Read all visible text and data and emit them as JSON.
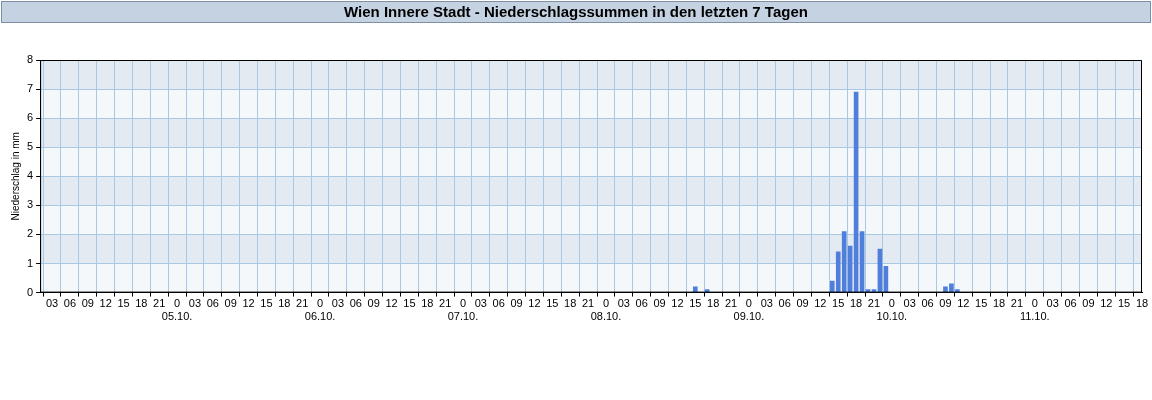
{
  "chart_data": {
    "type": "bar",
    "title": "Wien Innere Stadt - Niederschlagssummen in den letzten 7 Tagen",
    "ylabel": "Niederschlag in mm",
    "x": [
      "--10-08T15:00",
      "--10-08T17:00",
      "--10-09T14:00",
      "--10-09T15:00",
      "--10-09T16:00",
      "--10-09T17:00",
      "--10-09T18:00",
      "--10-09T19:00",
      "--10-09T20:00",
      "--10-09T21:00",
      "--10-09T22:00",
      "--10-09T23:00",
      "--10-10T09:00",
      "--10-10T10:00",
      "--10-10T11:00"
    ],
    "values": [
      0.2,
      0.1,
      0.4,
      1.4,
      2.1,
      1.6,
      6.9,
      2.1,
      0.1,
      0.1,
      1.5,
      0.9,
      0.2,
      0.3,
      0.1
    ],
    "color": "#4f7fdb",
    "xlim": [
      "--10-04T01:00",
      "--10-11T18:00"
    ],
    "xticks": [
      {
        "value": "--10-04T03:00",
        "label": "03"
      },
      {
        "value": "--10-04T06:00",
        "label": "06"
      },
      {
        "value": "--10-04T09:00",
        "label": "09"
      },
      {
        "value": "--10-04T12:00",
        "label": "12"
      },
      {
        "value": "--10-04T15:00",
        "label": "15"
      },
      {
        "value": "--10-04T18:00",
        "label": "18"
      },
      {
        "value": "--10-04T21:00",
        "label": "21"
      },
      {
        "value": "--10-05T00:00",
        "label": "0\n05.10."
      },
      {
        "value": "--10-05T03:00",
        "label": "03"
      },
      {
        "value": "--10-05T06:00",
        "label": "06"
      },
      {
        "value": "--10-05T09:00",
        "label": "09"
      },
      {
        "value": "--10-05T12:00",
        "label": "12"
      },
      {
        "value": "--10-05T15:00",
        "label": "15"
      },
      {
        "value": "--10-05T18:00",
        "label": "18"
      },
      {
        "value": "--10-05T21:00",
        "label": "21"
      },
      {
        "value": "--10-06T00:00",
        "label": "0\n06.10."
      },
      {
        "value": "--10-06T03:00",
        "label": "03"
      },
      {
        "value": "--10-06T06:00",
        "label": "06"
      },
      {
        "value": "--10-06T09:00",
        "label": "09"
      },
      {
        "value": "--10-06T12:00",
        "label": "12"
      },
      {
        "value": "--10-06T15:00",
        "label": "15"
      },
      {
        "value": "--10-06T18:00",
        "label": "18"
      },
      {
        "value": "--10-06T21:00",
        "label": "21"
      },
      {
        "value": "--10-07T00:00",
        "label": "0\n07.10."
      },
      {
        "value": "--10-07T03:00",
        "label": "03"
      },
      {
        "value": "--10-07T06:00",
        "label": "06"
      },
      {
        "value": "--10-07T09:00",
        "label": "09"
      },
      {
        "value": "--10-07T12:00",
        "label": "12"
      },
      {
        "value": "--10-07T15:00",
        "label": "15"
      },
      {
        "value": "--10-07T18:00",
        "label": "18"
      },
      {
        "value": "--10-07T21:00",
        "label": "21"
      },
      {
        "value": "--10-08T00:00",
        "label": "0\n08.10."
      },
      {
        "value": "--10-08T03:00",
        "label": "03"
      },
      {
        "value": "--10-08T06:00",
        "label": "06"
      },
      {
        "value": "--10-08T09:00",
        "label": "09"
      },
      {
        "value": "--10-08T12:00",
        "label": "12"
      },
      {
        "value": "--10-08T15:00",
        "label": "15"
      },
      {
        "value": "--10-08T18:00",
        "label": "18"
      },
      {
        "value": "--10-08T21:00",
        "label": "21"
      },
      {
        "value": "--10-09T00:00",
        "label": "0\n09.10."
      },
      {
        "value": "--10-09T03:00",
        "label": "03"
      },
      {
        "value": "--10-09T06:00",
        "label": "06"
      },
      {
        "value": "--10-09T09:00",
        "label": "09"
      },
      {
        "value": "--10-09T12:00",
        "label": "12"
      },
      {
        "value": "--10-09T15:00",
        "label": "15"
      },
      {
        "value": "--10-09T18:00",
        "label": "18"
      },
      {
        "value": "--10-09T21:00",
        "label": "21"
      },
      {
        "value": "--10-10T00:00",
        "label": "0\n10.10."
      },
      {
        "value": "--10-10T03:00",
        "label": "03"
      },
      {
        "value": "--10-10T06:00",
        "label": "06"
      },
      {
        "value": "--10-10T09:00",
        "label": "09"
      },
      {
        "value": "--10-10T12:00",
        "label": "12"
      },
      {
        "value": "--10-10T15:00",
        "label": "15"
      },
      {
        "value": "--10-10T18:00",
        "label": "18"
      },
      {
        "value": "--10-10T21:00",
        "label": "21"
      },
      {
        "value": "--10-11T00:00",
        "label": "0\n11.10."
      },
      {
        "value": "--10-11T03:00",
        "label": "03"
      },
      {
        "value": "--10-11T06:00",
        "label": "06"
      },
      {
        "value": "--10-11T09:00",
        "label": "09"
      },
      {
        "value": "--10-11T12:00",
        "label": "12"
      },
      {
        "value": "--10-11T15:00",
        "label": "15"
      },
      {
        "value": "--10-11T18:00",
        "label": "18"
      }
    ],
    "ylim": [
      0,
      8
    ],
    "yticks": [
      0,
      1,
      2,
      3,
      4,
      5,
      6,
      7,
      8
    ],
    "bands": [
      {
        "axis": "y",
        "from": 1,
        "to": 2,
        "color": "#e4eaf2"
      },
      {
        "axis": "y",
        "from": 3,
        "to": 4,
        "color": "#e4eaf2"
      },
      {
        "axis": "y",
        "from": 5,
        "to": 6,
        "color": "#e4eaf2"
      },
      {
        "axis": "y",
        "from": 7,
        "to": 8,
        "color": "#e4eaf2"
      }
    ],
    "grid": true,
    "legend": false
  }
}
